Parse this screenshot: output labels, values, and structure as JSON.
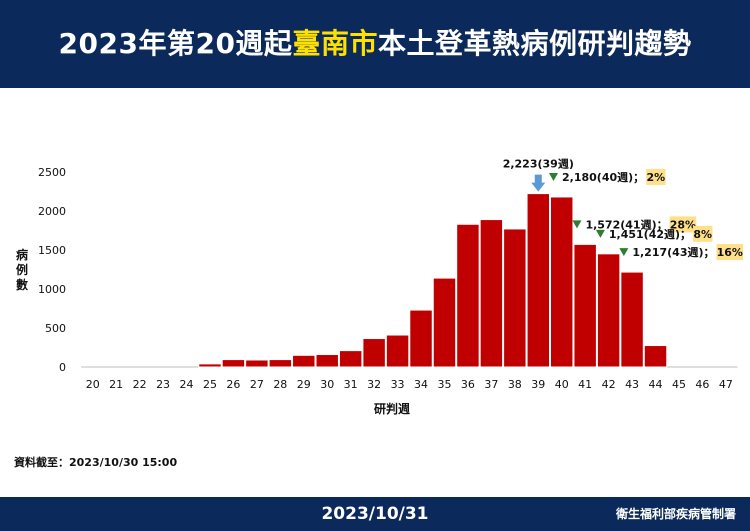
{
  "header": {
    "title_prefix": "2023年第20週起",
    "title_highlight": "臺南市",
    "title_suffix": "本土登革熱病例研判趨勢"
  },
  "footer": {
    "date": "2023/10/31",
    "org": "衛生福利部疾病管制署"
  },
  "source_note": "資料截至：2023/10/30 15:00",
  "colors": {
    "header_bg": "#0b2a5b",
    "highlight": "#ffe100",
    "bar": "#c00000",
    "bar_border": "#ffffff",
    "down_triangle": "#2e7d32",
    "arrow": "#5b9bd5",
    "pct_box": "#ffe08a"
  },
  "chart_data": {
    "type": "bar",
    "xlabel": "研判週",
    "ylabel": "病例數",
    "ylim": [
      0,
      2500
    ],
    "yticks": [
      0,
      500,
      1000,
      1500,
      2000,
      2500
    ],
    "grid": false,
    "categories": [
      "20",
      "21",
      "22",
      "23",
      "24",
      "25",
      "26",
      "27",
      "28",
      "29",
      "30",
      "31",
      "32",
      "33",
      "34",
      "35",
      "36",
      "37",
      "38",
      "39",
      "40",
      "41",
      "42",
      "43",
      "44",
      "45",
      "46",
      "47"
    ],
    "values": [
      0,
      0,
      0,
      0,
      0,
      40,
      95,
      90,
      95,
      150,
      160,
      210,
      365,
      410,
      730,
      1140,
      1830,
      1890,
      1770,
      2223,
      2180,
      1572,
      1451,
      1217,
      275,
      0,
      0,
      0
    ],
    "annotations": [
      {
        "week": "39",
        "text": "2,223(39週)",
        "marker": "arrow"
      },
      {
        "week": "40",
        "text": "2,180(40週)；",
        "pct": "2%",
        "marker": "down"
      },
      {
        "week": "41",
        "text": "1,572(41週)；",
        "pct": "28%",
        "marker": "down"
      },
      {
        "week": "42",
        "text": "1,451(42週)；",
        "pct": "8%",
        "marker": "down"
      },
      {
        "week": "43",
        "text": "1,217(43週)；",
        "pct": "16%",
        "marker": "down"
      }
    ]
  }
}
